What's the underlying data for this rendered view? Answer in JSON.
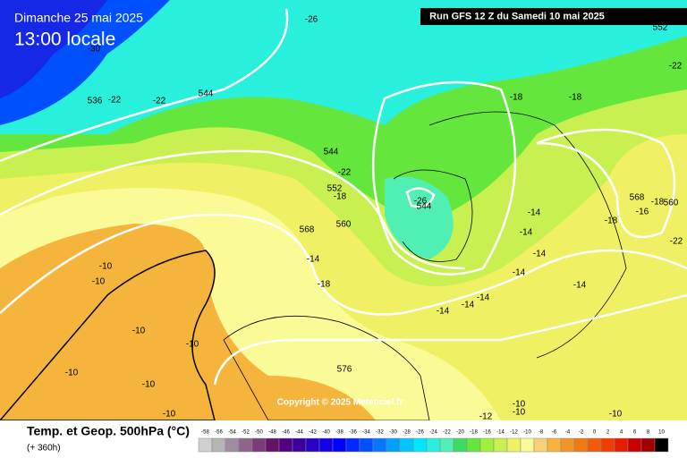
{
  "header": {
    "date": "Dimanche 25 mai 2025",
    "time": "13:00 locale",
    "run": "Run GFS 12 Z du Samedi 10 mai 2025"
  },
  "map": {
    "labels": [
      "-26",
      "-30",
      "552",
      "-22",
      "536",
      "-22",
      "-22",
      "544",
      "-18",
      "-18",
      "544",
      "-22",
      "552",
      "-18",
      "-26",
      "544",
      "560",
      "568",
      "-18",
      "-16",
      "560",
      "-14",
      "-18",
      "-22",
      "568",
      "-14",
      "-14",
      "-14",
      "-10",
      "-10",
      "-18",
      "-14",
      "-14",
      "-14",
      "-14",
      "-14",
      "-10",
      "-10",
      "576",
      "-10",
      "-10",
      "-10",
      "-12",
      "-10",
      "-10",
      "-10"
    ],
    "copyright": "Copyright © 2025 Meteociel.fr"
  },
  "legend": {
    "title": "Temp. et Geop. 500hPa (°C)",
    "subtitle": "(+ 360h)",
    "scale": [
      -58,
      -56,
      -54,
      -52,
      -50,
      -48,
      -46,
      -44,
      -42,
      -40,
      -38,
      -36,
      -34,
      -32,
      -30,
      -28,
      -26,
      -24,
      -22,
      -20,
      -18,
      -16,
      -14,
      -12,
      -10,
      -8,
      -6,
      -4,
      -2,
      0,
      2,
      4,
      6,
      8,
      10
    ],
    "colors": [
      "#d0d0d0",
      "#b4b4b4",
      "#a08ca0",
      "#8c648c",
      "#783c78",
      "#641464",
      "#500080",
      "#3c00a0",
      "#2800c8",
      "#1400e6",
      "#0000ff",
      "#0028ff",
      "#0050ff",
      "#0078ff",
      "#00a0ff",
      "#00c8ff",
      "#00e6ff",
      "#28f0dc",
      "#50f0b4",
      "#3cdc64",
      "#64e63c",
      "#a0f03c",
      "#c8f050",
      "#f0f064",
      "#fafa96",
      "#f5d278",
      "#f5b43c",
      "#f09628",
      "#f07814",
      "#f05a0a",
      "#f03c00",
      "#e61e00",
      "#c80000",
      "#a00000",
      "#000000"
    ]
  }
}
